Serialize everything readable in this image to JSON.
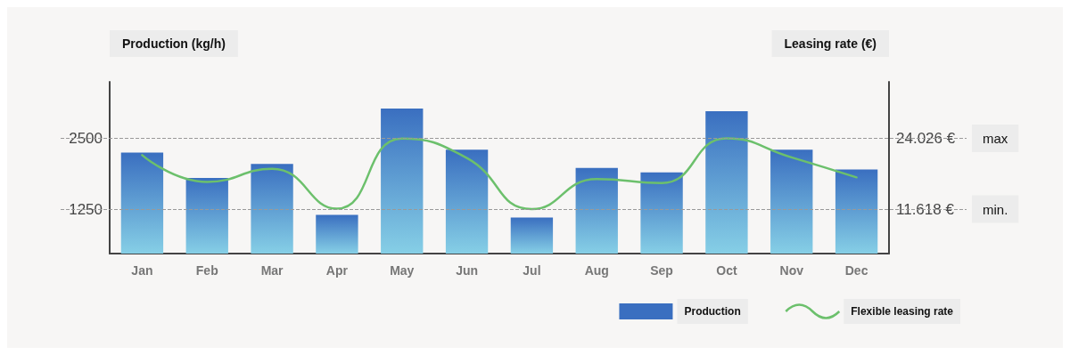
{
  "chart_data": {
    "type": "bar",
    "ylabel": "Production (kg/h)",
    "y2label": "Leasing rate (€)",
    "categories": [
      "Jan",
      "Feb",
      "Mar",
      "Apr",
      "May",
      "Jun",
      "Jul",
      "Aug",
      "Sep",
      "Oct",
      "Nov",
      "Dec"
    ],
    "series": [
      {
        "name": "Production",
        "color": "#3a6fc0",
        "values": [
          2250,
          1800,
          2050,
          1150,
          3030,
          2300,
          1100,
          1980,
          1900,
          2980,
          2300,
          1950
        ]
      },
      {
        "name": "Flexible leasing rate",
        "type": "line",
        "axis": "y2",
        "color": "#6cc06c",
        "values": [
          21100,
          16400,
          18700,
          11700,
          24000,
          20600,
          11618,
          16900,
          16200,
          24026,
          20700,
          17200
        ]
      }
    ],
    "ylim": [
      465,
      3500
    ],
    "yticks": [
      1250,
      2500
    ],
    "y2lim": [
      3826,
      33952
    ],
    "y2ticks": [
      {
        "value": 11618,
        "label": "11.618 €"
      },
      {
        "value": 24026,
        "label": "24.026 €"
      }
    ],
    "ref_lines": [
      {
        "axis": "y2",
        "value": 24026,
        "label": "max",
        "line_style": "dashed",
        "color": "#999999"
      },
      {
        "axis": "y2",
        "value": 11618,
        "label": "min.",
        "line_style": "dashed",
        "color": "#999999"
      }
    ],
    "grid": false,
    "legend": "bottom right",
    "marker": "none",
    "line_style": "solid"
  }
}
